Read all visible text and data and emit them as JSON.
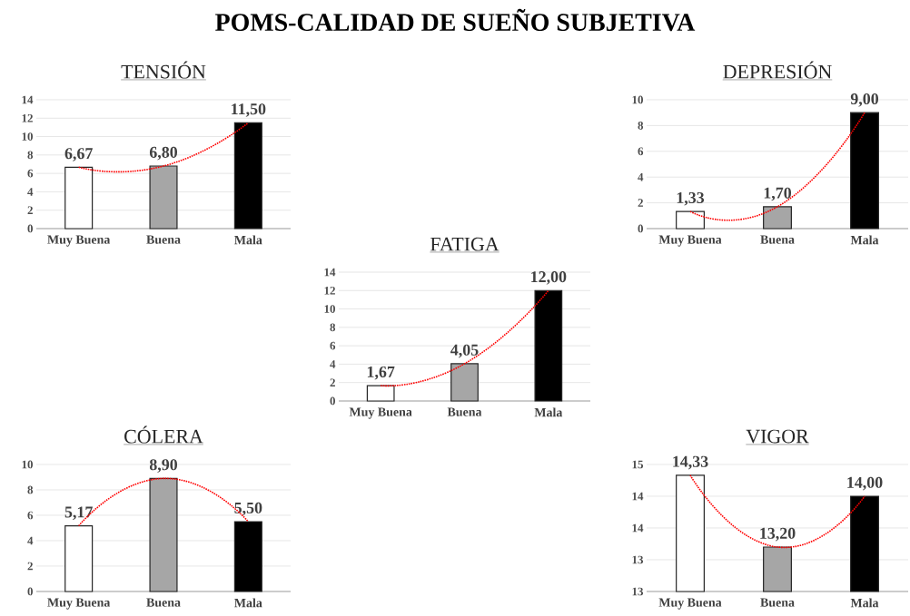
{
  "chart_data": [
    {
      "type": "other",
      "title": "POMS-CALIDAD DE SUEÑO SUBJETIVA"
    },
    {
      "type": "bar",
      "title": "TENSIÓN",
      "categories": [
        "Muy Buena",
        "Buena",
        "Mala"
      ],
      "grid": "y",
      "ylim": [
        0,
        14
      ],
      "yticks": [
        0,
        2,
        4,
        6,
        8,
        10,
        12,
        14
      ],
      "series": [
        {
          "type": "bar",
          "colors": [
            "#ffffff",
            "#a6a6a6",
            "#000000"
          ],
          "values": [
            6.67,
            6.8,
            11.5
          ],
          "value_labels": [
            "6,67",
            "6,80",
            "11,50"
          ]
        },
        {
          "type": "line",
          "values": [
            6.67,
            6.8,
            11.5
          ],
          "color": "#ff0000",
          "line_style": "dotted"
        }
      ]
    },
    {
      "type": "bar",
      "title": "DEPRESIÓN",
      "categories": [
        "Muy Buena",
        "Buena",
        "Mala"
      ],
      "grid": "y",
      "ylim": [
        0,
        10
      ],
      "yticks": [
        0,
        2,
        4,
        6,
        8,
        10
      ],
      "series": [
        {
          "type": "bar",
          "colors": [
            "#ffffff",
            "#a6a6a6",
            "#000000"
          ],
          "values": [
            1.33,
            1.7,
            9.0
          ],
          "value_labels": [
            "1,33",
            "1,70",
            "9,00"
          ]
        },
        {
          "type": "line",
          "values": [
            1.33,
            1.7,
            9.0
          ],
          "color": "#ff0000",
          "line_style": "dotted"
        }
      ]
    },
    {
      "type": "bar",
      "title": "FATIGA",
      "categories": [
        "Muy Buena",
        "Buena",
        "Mala"
      ],
      "grid": "y",
      "ylim": [
        0,
        14
      ],
      "yticks": [
        0,
        2,
        4,
        6,
        8,
        10,
        12,
        14
      ],
      "series": [
        {
          "type": "bar",
          "colors": [
            "#ffffff",
            "#a6a6a6",
            "#000000"
          ],
          "values": [
            1.67,
            4.05,
            12.0
          ],
          "value_labels": [
            "1,67",
            "4,05",
            "12,00"
          ]
        },
        {
          "type": "line",
          "values": [
            1.67,
            4.05,
            12.0
          ],
          "color": "#ff0000",
          "line_style": "dotted"
        }
      ]
    },
    {
      "type": "bar",
      "title": "CÓLERA",
      "categories": [
        "Muy Buena",
        "Buena",
        "Mala"
      ],
      "grid": "y",
      "ylim": [
        0,
        10
      ],
      "yticks": [
        0,
        2,
        4,
        6,
        8,
        10
      ],
      "series": [
        {
          "type": "bar",
          "colors": [
            "#ffffff",
            "#a6a6a6",
            "#000000"
          ],
          "values": [
            5.17,
            8.9,
            5.5
          ],
          "value_labels": [
            "5,17",
            "8,90",
            "5,50"
          ]
        },
        {
          "type": "line",
          "values": [
            5.17,
            8.9,
            5.5
          ],
          "color": "#ff0000",
          "line_style": "dotted"
        }
      ]
    },
    {
      "type": "bar",
      "title": "VIGOR",
      "categories": [
        "Muy Buena",
        "Buena",
        "Mala"
      ],
      "grid": "y",
      "ylim": [
        12.5,
        14.5
      ],
      "yticks": [
        {
          "value": 12.5,
          "label": "13"
        },
        {
          "value": 13,
          "label": "13"
        },
        {
          "value": 13.5,
          "label": "14"
        },
        {
          "value": 14,
          "label": "14"
        },
        {
          "value": 14.5,
          "label": "15"
        }
      ],
      "series": [
        {
          "type": "bar",
          "colors": [
            "#ffffff",
            "#a6a6a6",
            "#000000"
          ],
          "values": [
            14.33,
            13.2,
            14.0
          ],
          "value_labels": [
            "14,33",
            "13,20",
            "14,00"
          ]
        },
        {
          "type": "line",
          "values": [
            14.33,
            13.2,
            14.0
          ],
          "color": "#ff0000",
          "line_style": "dotted"
        }
      ]
    }
  ]
}
